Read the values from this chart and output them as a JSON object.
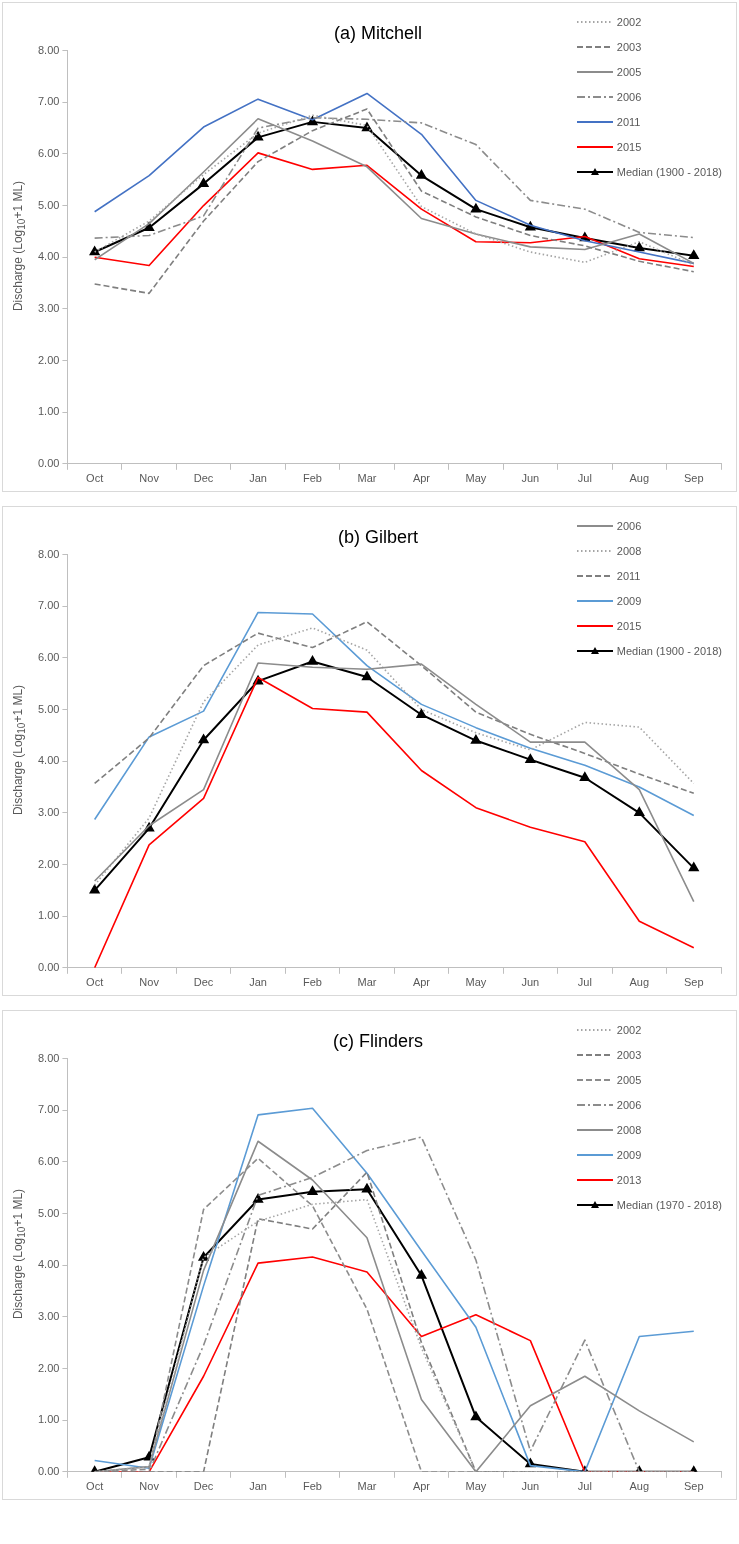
{
  "chart_data": [
    {
      "type": "line",
      "title": "(a) Mitchell",
      "ylabel": "Discharge (Log$_{10}$+1 ML)",
      "categories": [
        "Oct",
        "Nov",
        "Dec",
        "Jan",
        "Feb",
        "Mar",
        "Apr",
        "May",
        "Jun",
        "Jul",
        "Aug",
        "Sep"
      ],
      "ylim": [
        0,
        8
      ],
      "yticks": [
        {
          "value": 0,
          "label": "0.00"
        },
        {
          "value": 1,
          "label": "1.00"
        },
        {
          "value": 2,
          "label": "2.00"
        },
        {
          "value": 3,
          "label": "3.00"
        },
        {
          "value": 4,
          "label": "4.00"
        },
        {
          "value": 5,
          "label": "5.00"
        },
        {
          "value": 6,
          "label": "6.00"
        },
        {
          "value": 7,
          "label": "7.00"
        },
        {
          "value": 8,
          "label": "8.00"
        }
      ],
      "legend": "top right",
      "series": [
        {
          "name": "2002",
          "color": "#a5a5a5",
          "line_style": "dotted",
          "marker": "none",
          "values": [
            4.1,
            4.7,
            5.6,
            6.4,
            6.75,
            6.55,
            4.98,
            4.45,
            4.1,
            3.9,
            4.3,
            3.85
          ]
        },
        {
          "name": "2003",
          "color": "#7f7f7f",
          "line_style": "dashed",
          "marker": "none",
          "values": [
            3.48,
            3.3,
            4.7,
            5.85,
            6.45,
            6.87,
            5.28,
            4.78,
            4.42,
            4.22,
            3.92,
            3.72
          ]
        },
        {
          "name": "2005",
          "color": "#8c8c8c",
          "line_style": "solid",
          "marker": "none",
          "values": [
            3.95,
            4.65,
            5.65,
            6.68,
            6.25,
            5.75,
            4.75,
            4.45,
            4.2,
            4.15,
            4.45,
            3.88
          ]
        },
        {
          "name": "2006",
          "color": "#8c8c8c",
          "line_style": "dashdot",
          "marker": "none",
          "values": [
            4.37,
            4.42,
            4.8,
            6.5,
            6.7,
            6.67,
            6.6,
            6.18,
            5.1,
            4.93,
            4.48,
            4.38
          ]
        },
        {
          "name": "2011",
          "color": "#4472c4",
          "line_style": "solid",
          "marker": "none",
          "values": [
            4.88,
            5.58,
            6.52,
            7.06,
            6.66,
            7.17,
            6.38,
            5.1,
            4.62,
            4.32,
            4.1,
            3.88
          ]
        },
        {
          "name": "2015",
          "color": "#ff0000",
          "line_style": "solid",
          "marker": "none",
          "values": [
            4.0,
            3.84,
            5.0,
            6.02,
            5.7,
            5.78,
            4.93,
            4.3,
            4.28,
            4.4,
            3.97,
            3.82
          ]
        },
        {
          "name": "Median (1900 - 2018)",
          "color": "#000000",
          "line_style": "solid",
          "marker": "triangle",
          "values": [
            4.1,
            4.57,
            5.42,
            6.32,
            6.62,
            6.5,
            5.58,
            4.93,
            4.58,
            4.37,
            4.18,
            4.03
          ]
        }
      ]
    },
    {
      "type": "line",
      "title": "(b) Gilbert",
      "ylabel": "Discharge (Log$_{10}$+1 ML)",
      "categories": [
        "Oct",
        "Nov",
        "Dec",
        "Jan",
        "Feb",
        "Mar",
        "Apr",
        "May",
        "Jun",
        "Jul",
        "Aug",
        "Sep"
      ],
      "ylim": [
        0,
        8
      ],
      "yticks": [
        {
          "value": 0,
          "label": "0.00"
        },
        {
          "value": 1,
          "label": "1.00"
        },
        {
          "value": 2,
          "label": "2.00"
        },
        {
          "value": 3,
          "label": "3.00"
        },
        {
          "value": 4,
          "label": "4.00"
        },
        {
          "value": 5,
          "label": "5.00"
        },
        {
          "value": 6,
          "label": "6.00"
        },
        {
          "value": 7,
          "label": "7.00"
        },
        {
          "value": 8,
          "label": "8.00"
        }
      ],
      "legend": "top right",
      "series": [
        {
          "name": "2006",
          "color": "#8c8c8c",
          "line_style": "solid",
          "marker": "none",
          "values": [
            1.68,
            2.75,
            3.45,
            5.9,
            5.82,
            5.78,
            5.88,
            5.1,
            4.37,
            4.37,
            3.45,
            1.28
          ]
        },
        {
          "name": "2008",
          "color": "#a5a5a5",
          "line_style": "dotted",
          "marker": "none",
          "values": [
            1.6,
            2.9,
            5.15,
            6.25,
            6.58,
            6.15,
            5.0,
            4.55,
            4.22,
            4.75,
            4.66,
            3.57
          ]
        },
        {
          "name": "2011",
          "color": "#7f7f7f",
          "line_style": "dashed",
          "marker": "none",
          "values": [
            3.57,
            4.45,
            5.85,
            6.48,
            6.2,
            6.7,
            5.85,
            4.95,
            4.52,
            4.15,
            3.75,
            3.38
          ]
        },
        {
          "name": "2009",
          "color": "#5b9bd5",
          "line_style": "solid",
          "marker": "none",
          "values": [
            2.87,
            4.47,
            4.97,
            6.88,
            6.85,
            5.85,
            5.1,
            4.65,
            4.25,
            3.92,
            3.5,
            2.95
          ]
        },
        {
          "name": "2015",
          "color": "#ff0000",
          "line_style": "solid",
          "marker": "none",
          "values": [
            0.0,
            2.38,
            3.28,
            5.62,
            5.02,
            4.95,
            3.82,
            3.1,
            2.72,
            2.44,
            0.9,
            0.39
          ]
        },
        {
          "name": "Median (1900 - 2018)",
          "color": "#000000",
          "line_style": "solid",
          "marker": "triangle",
          "values": [
            1.5,
            2.7,
            4.41,
            5.55,
            5.93,
            5.63,
            4.9,
            4.4,
            4.03,
            3.68,
            3.0,
            1.93
          ]
        }
      ]
    },
    {
      "type": "line",
      "title": "(c) Flinders",
      "ylabel": "Discharge (Log$_{10}$+1 ML)",
      "categories": [
        "Oct",
        "Nov",
        "Dec",
        "Jan",
        "Feb",
        "Mar",
        "Apr",
        "May",
        "Jun",
        "Jul",
        "Aug",
        "Sep"
      ],
      "ylim": [
        0,
        8
      ],
      "yticks": [
        {
          "value": 0,
          "label": "0.00"
        },
        {
          "value": 1,
          "label": "1.00"
        },
        {
          "value": 2,
          "label": "2.00"
        },
        {
          "value": 3,
          "label": "3.00"
        },
        {
          "value": 4,
          "label": "4.00"
        },
        {
          "value": 5,
          "label": "5.00"
        },
        {
          "value": 6,
          "label": "6.00"
        },
        {
          "value": 7,
          "label": "7.00"
        },
        {
          "value": 8,
          "label": "8.00"
        }
      ],
      "legend": "top right",
      "series": [
        {
          "name": "2002",
          "color": "#a5a5a5",
          "line_style": "dotted",
          "marker": "none",
          "values": [
            0,
            0.1,
            4.15,
            4.85,
            5.18,
            5.27,
            2.4,
            0,
            0,
            0,
            0,
            0
          ]
        },
        {
          "name": "2003",
          "color": "#7f7f7f",
          "line_style": "dashed",
          "marker": "none",
          "values": [
            0,
            0,
            0,
            4.9,
            4.7,
            5.8,
            2.5,
            0,
            0,
            0,
            0,
            0
          ]
        },
        {
          "name": "2005",
          "color": "#8c8c8c",
          "line_style": "dashed",
          "marker": "none",
          "values": [
            0,
            0.05,
            5.08,
            6.07,
            5.15,
            3.15,
            0,
            0,
            0,
            0,
            0,
            0
          ]
        },
        {
          "name": "2006",
          "color": "#8c8c8c",
          "line_style": "dashdot",
          "marker": "none",
          "values": [
            0,
            0,
            2.45,
            5.35,
            5.7,
            6.22,
            6.48,
            4.1,
            0.4,
            2.55,
            0,
            0
          ]
        },
        {
          "name": "2008",
          "color": "#8c8c8c",
          "line_style": "solid",
          "marker": "none",
          "values": [
            0,
            0.1,
            3.9,
            6.4,
            5.65,
            4.53,
            1.4,
            0,
            1.28,
            1.85,
            1.18,
            0.58
          ]
        },
        {
          "name": "2009",
          "color": "#5b9bd5",
          "line_style": "solid",
          "marker": "none",
          "values": [
            0.22,
            0.07,
            3.6,
            6.91,
            7.04,
            5.78,
            4.28,
            2.8,
            0.12,
            0,
            2.62,
            2.72
          ]
        },
        {
          "name": "2013",
          "color": "#ff0000",
          "line_style": "solid",
          "marker": "none",
          "values": [
            0,
            0,
            1.85,
            4.04,
            4.16,
            3.87,
            2.62,
            3.04,
            2.54,
            0,
            0,
            0
          ]
        },
        {
          "name": "Median (1970 - 2018)",
          "color": "#000000",
          "line_style": "solid",
          "marker": "triangle",
          "values": [
            0,
            0.28,
            4.15,
            5.27,
            5.42,
            5.47,
            3.8,
            1.06,
            0.15,
            0,
            0,
            0
          ]
        }
      ]
    }
  ]
}
